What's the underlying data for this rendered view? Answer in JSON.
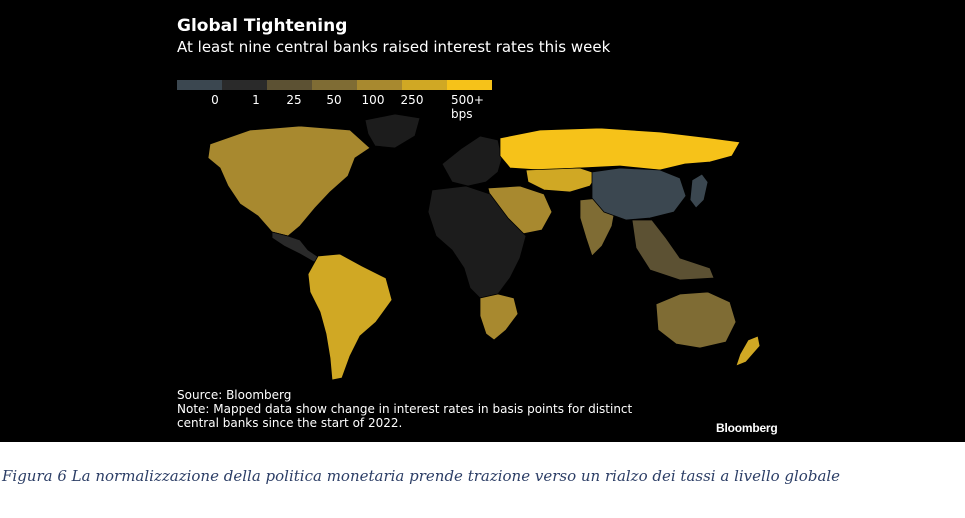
{
  "header": {
    "title": "Global Tightening",
    "subtitle": "At least nine central banks raised interest rates this week"
  },
  "legend": {
    "labels": [
      "0",
      "1",
      "25",
      "50",
      "100",
      "250",
      "500+ bps"
    ],
    "colors": [
      "#3b4750",
      "#2a2a2a",
      "#5c5133",
      "#7f6c34",
      "#a8892f",
      "#d0a824",
      "#f6c219"
    ]
  },
  "map": {
    "land_color": "#1c1c1c",
    "regions": [
      {
        "name": "North America",
        "color": "#a8892f"
      },
      {
        "name": "Greenland",
        "color": "#1c1c1c"
      },
      {
        "name": "Central America",
        "color": "#2a2a2a"
      },
      {
        "name": "South America",
        "color": "#d0a824"
      },
      {
        "name": "Europe",
        "color": "#1c1c1c"
      },
      {
        "name": "Russia",
        "color": "#f6c219"
      },
      {
        "name": "Central Asia",
        "color": "#d0a824"
      },
      {
        "name": "Middle East",
        "color": "#a8892f"
      },
      {
        "name": "Africa",
        "color": "#1c1c1c"
      },
      {
        "name": "Southern Africa",
        "color": "#a8892f"
      },
      {
        "name": "India",
        "color": "#7f6c34"
      },
      {
        "name": "China",
        "color": "#3b4750"
      },
      {
        "name": "Southeast Asia",
        "color": "#5c5133"
      },
      {
        "name": "Japan",
        "color": "#3b4750"
      },
      {
        "name": "Australia",
        "color": "#7f6c34"
      },
      {
        "name": "New Zealand",
        "color": "#d0a824"
      }
    ]
  },
  "footer": {
    "source": "Source: Bloomberg",
    "note": "Note: Mapped data show change in interest rates in basis points for distinct central banks since the start of 2022.",
    "brand": "Bloomberg"
  },
  "caption": "Figura 6 La normalizzazione della politica monetaria prende trazione verso un rialzo dei tassi a livello globale"
}
